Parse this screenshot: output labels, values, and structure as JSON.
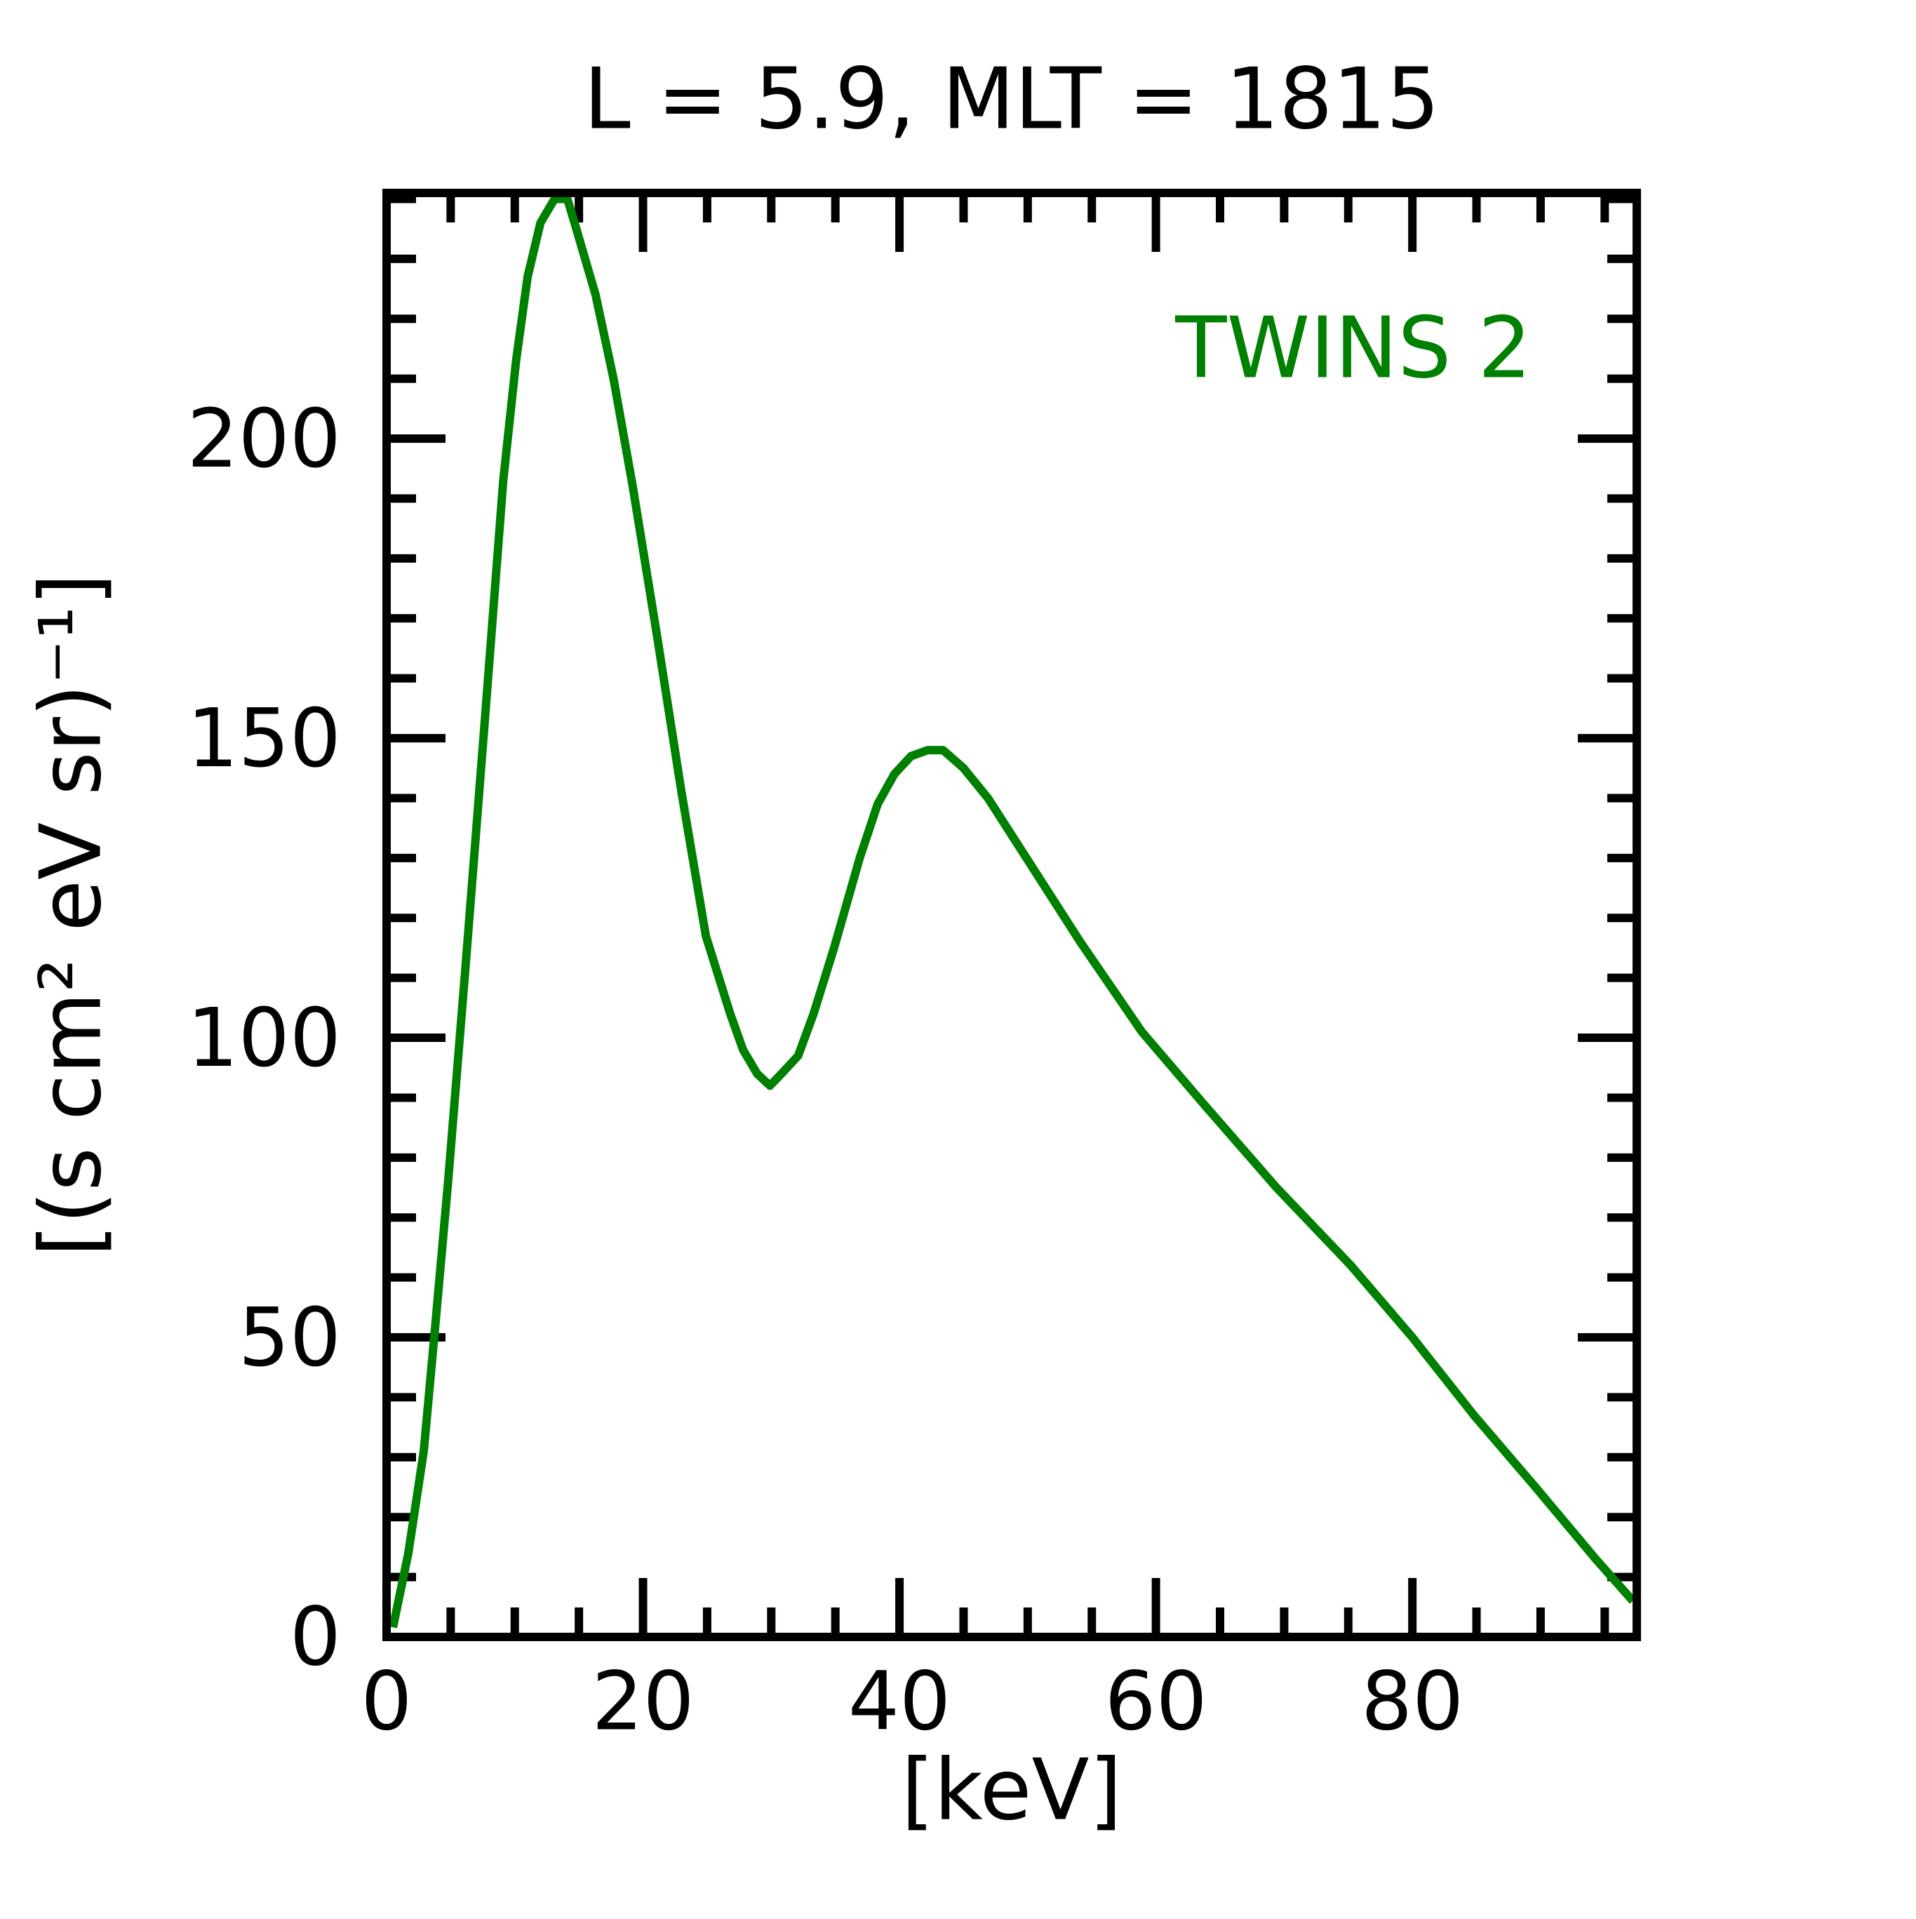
{
  "chart_data": {
    "type": "line",
    "title": "L =  5.9, MLT = 1815",
    "x_label": "[keV]",
    "y_label": "[(s cm² eV sr)⁻¹]",
    "xlim": [
      0,
      97.5
    ],
    "ylim": [
      0,
      241
    ],
    "xticks": [
      0,
      20,
      40,
      60,
      80
    ],
    "yticks": [
      0,
      50,
      100,
      150,
      200
    ],
    "xminorticks": [
      5,
      10,
      15,
      25,
      30,
      35,
      45,
      50,
      55,
      65,
      70,
      75,
      85,
      90,
      95
    ],
    "yminorticks": [
      10,
      20,
      30,
      40,
      60,
      70,
      80,
      90,
      110,
      120,
      130,
      140,
      160,
      170,
      180,
      190,
      210,
      220,
      230,
      240
    ],
    "x": [
      0.5,
      1.7,
      2.9,
      3.8,
      4.8,
      6.2,
      7.7,
      9.1,
      10.1,
      11.0,
      12.0,
      13.1,
      14.1,
      14.8,
      16.3,
      17.7,
      19.2,
      21.1,
      23.0,
      24.9,
      26.8,
      27.8,
      28.9,
      29.9,
      30.8,
      32.1,
      33.3,
      34.9,
      36.9,
      38.3,
      39.6,
      40.9,
      42.2,
      43.4,
      45.0,
      46.9,
      49.3,
      54.1,
      58.9,
      63.7,
      69.4,
      75.2,
      80.0,
      84.8,
      89.6,
      94.3,
      97.2
    ],
    "series": [
      {
        "name": "TWINS 2",
        "color": "#008000",
        "values": [
          1.6,
          14,
          31,
          52,
          76,
          113,
          154,
          193,
          213,
          227,
          236,
          240,
          240,
          235,
          224,
          210,
          192,
          167,
          141,
          117,
          104,
          98,
          94,
          92,
          94,
          97,
          104,
          115,
          130,
          139,
          144,
          147,
          148,
          148,
          145,
          140,
          132,
          116,
          101,
          89,
          75,
          62,
          50,
          37,
          25,
          13,
          6
        ]
      }
    ],
    "legend": "upper right"
  }
}
